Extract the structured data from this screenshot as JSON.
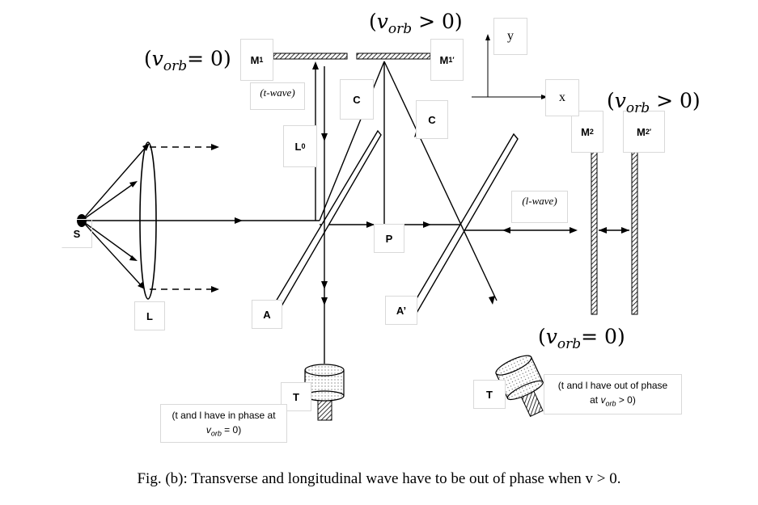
{
  "labels": {
    "source": "S",
    "lens": "L",
    "mirror_m1": "M",
    "mirror_m1_prime": "M",
    "mirror_m2": "M",
    "mirror_m2_prime": "M",
    "beam_splitter_a": "A",
    "beam_splitter_a_prime": "A’",
    "length_l0": "L",
    "point_p": "P",
    "path_c_left": "C",
    "path_c_right": "C",
    "telescope_left": "T",
    "telescope_right": "T",
    "axis_x": "x",
    "axis_y": "y"
  },
  "wave_labels": {
    "t_wave": "(t-wave)",
    "l_wave": "(l-wave)"
  },
  "velocity_labels": {
    "m1_zero": "= 0)",
    "m1_prime_positive": "> 0)",
    "m2_prime_positive": "> 0)",
    "telescope_right_zero": "= 0)"
  },
  "notes": {
    "left_line1": "(t and l have in phase at",
    "left_line2": "= 0)",
    "right_line1": "(t and l have out of phase",
    "right_line2": "at",
    "right_line3": "> 0)"
  },
  "caption": "Fig. (b): Transverse and longitudinal wave have to be out of phase when v > 0."
}
